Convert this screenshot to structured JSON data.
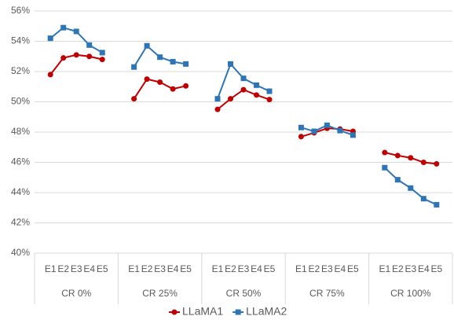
{
  "chart_data": {
    "type": "line",
    "categories": [
      "E1",
      "E2",
      "E3",
      "E4",
      "E5",
      "E1",
      "E2",
      "E3",
      "E4",
      "E5",
      "E1",
      "E2",
      "E3",
      "E4",
      "E5",
      "E1",
      "E2",
      "E3",
      "E4",
      "E5",
      "E1",
      "E2",
      "E3",
      "E4",
      "E5"
    ],
    "groups": [
      "CR 0%",
      "CR 25%",
      "CR 50%",
      "CR 75%",
      "CR 100%"
    ],
    "series": [
      {
        "name": "LLaMA1",
        "color": "#c00000",
        "marker": "circle",
        "values": [
          51.8,
          52.9,
          53.1,
          53.0,
          52.8,
          50.2,
          51.5,
          51.3,
          50.85,
          51.05,
          49.5,
          50.2,
          50.8,
          50.45,
          50.15,
          47.7,
          47.95,
          48.25,
          48.2,
          48.05,
          46.65,
          46.45,
          46.3,
          46.0,
          45.9
        ]
      },
      {
        "name": "LLaMA2",
        "color": "#2e75b6",
        "marker": "square",
        "values": [
          54.2,
          54.9,
          54.65,
          53.75,
          53.25,
          52.3,
          53.7,
          52.95,
          52.65,
          52.5,
          50.2,
          52.5,
          51.55,
          51.1,
          50.7,
          48.3,
          48.05,
          48.45,
          48.1,
          47.8,
          45.65,
          44.85,
          44.3,
          43.6,
          43.2
        ]
      }
    ],
    "ylim": [
      40,
      56
    ],
    "yticks": [
      {
        "value": 40,
        "label": "40%"
      },
      {
        "value": 42,
        "label": "42%"
      },
      {
        "value": 44,
        "label": "44%"
      },
      {
        "value": 46,
        "label": "46%"
      },
      {
        "value": 48,
        "label": "48%"
      },
      {
        "value": 50,
        "label": "50%"
      },
      {
        "value": 52,
        "label": "52%"
      },
      {
        "value": 54,
        "label": "54%"
      },
      {
        "value": 56,
        "label": "56%"
      }
    ],
    "grid": true,
    "legend": "bottom"
  }
}
